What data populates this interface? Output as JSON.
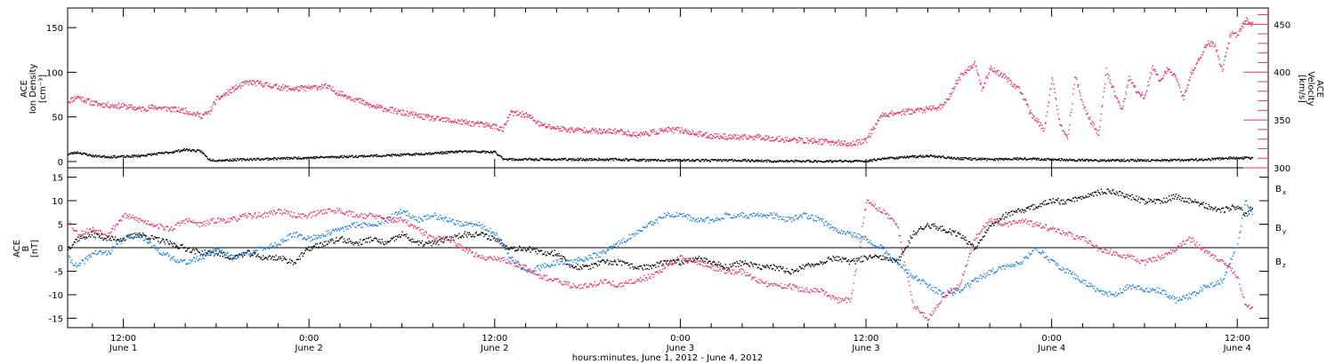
{
  "colors": {
    "black": "#000000",
    "pink": "#e8336a",
    "blue": "#1c7fd8"
  },
  "chart_data": [
    {
      "type": "scatter",
      "panel": "top",
      "ylabel_left": [
        "ACE",
        "Ion Density",
        "[cm⁻³]"
      ],
      "ylabel_right": [
        "ACE",
        "Velocity",
        "[km/s]"
      ],
      "ylim_left": [
        -7,
        172
      ],
      "ylim_right": [
        300,
        467
      ],
      "left_ticks": [
        0,
        50,
        100,
        150
      ],
      "left_tick_labels": [
        "0",
        "50",
        "100",
        "150"
      ],
      "right_ticks": [
        300,
        350,
        400,
        450
      ],
      "right_tick_labels": [
        "300",
        "350",
        "400",
        "450"
      ],
      "x_unit": "hours since 2012-06-01 00:00",
      "xlim": [
        8.4,
        86
      ],
      "series": [
        {
          "axis": "right",
          "color": "#e8336a",
          "x": [
            8.4,
            9,
            10,
            11,
            12,
            13,
            14,
            15,
            16,
            17,
            17.5,
            18,
            19,
            20,
            21,
            22,
            23,
            24,
            25,
            26,
            27,
            28,
            29,
            30,
            31,
            32,
            33,
            34,
            35,
            36,
            36.5,
            37,
            38,
            39,
            40,
            41,
            42,
            43,
            44,
            45,
            46,
            47,
            48,
            49,
            50,
            51,
            52,
            53,
            54,
            55,
            56,
            57,
            58,
            59,
            60,
            61,
            62,
            63,
            64,
            65,
            66,
            67,
            67.5,
            68,
            69,
            70,
            70.5,
            71,
            71.5,
            72,
            72.5,
            73,
            73.5,
            74,
            74.5,
            75,
            75.5,
            76,
            76.5,
            77,
            77.5,
            78,
            78.5,
            79,
            79.5,
            80,
            80.5,
            81,
            81.5,
            82,
            82.5,
            83,
            83.5,
            84,
            84.5,
            85
          ],
          "y": [
            370,
            375,
            368,
            366,
            365,
            362,
            364,
            362,
            360,
            355,
            358,
            372,
            382,
            390,
            388,
            385,
            383,
            384,
            386,
            378,
            372,
            365,
            362,
            358,
            355,
            352,
            350,
            348,
            346,
            344,
            340,
            358,
            356,
            345,
            342,
            340,
            340,
            338,
            339,
            335,
            337,
            340,
            340,
            336,
            334,
            333,
            332,
            333,
            331,
            330,
            329,
            328,
            327,
            325,
            330,
            356,
            358,
            360,
            362,
            365,
            395,
            410,
            382,
            405,
            395,
            380,
            360,
            350,
            340,
            395,
            345,
            330,
            398,
            365,
            350,
            335,
            402,
            380,
            360,
            395,
            380,
            375,
            405,
            390,
            405,
            395,
            372,
            400,
            415,
            430,
            430,
            402,
            440,
            440,
            455,
            450
          ]
        },
        {
          "axis": "left",
          "color": "#000000",
          "x": [
            8.4,
            9,
            10,
            11,
            12,
            13,
            14,
            15,
            16,
            17,
            17.5,
            18,
            20,
            22,
            24,
            26,
            28,
            30,
            32,
            34,
            36,
            36.5,
            37,
            38,
            40,
            42,
            44,
            46,
            48,
            50,
            52,
            54,
            56,
            58,
            60,
            61,
            62,
            64,
            66,
            68,
            70,
            72,
            74,
            76,
            78,
            80,
            82,
            84,
            85
          ],
          "y": [
            9,
            11,
            7,
            6,
            6,
            7,
            9,
            11,
            14,
            12,
            3,
            2,
            3,
            4,
            5,
            6,
            7,
            8,
            10,
            12,
            11,
            4,
            3,
            3,
            3,
            3,
            3,
            2,
            2,
            2,
            2,
            1,
            1,
            1,
            1,
            4,
            5,
            7,
            4,
            3,
            4,
            3,
            2,
            2,
            2,
            2,
            3,
            5,
            4
          ]
        }
      ]
    },
    {
      "type": "scatter",
      "panel": "bottom",
      "ylabel_left": [
        "ACE",
        "B",
        "[nT]"
      ],
      "ylim": [
        -17,
        17
      ],
      "ticks": [
        -15,
        -10,
        -5,
        0,
        5,
        10,
        15
      ],
      "tick_labels": [
        "-15",
        "-10",
        "-5",
        "0",
        "5",
        "10",
        "15"
      ],
      "zero_line": true,
      "x_unit": "hours since 2012-06-01 00:00",
      "xlim": [
        8.4,
        86
      ],
      "legend": [
        "Bₓ",
        "Bᵧ",
        "B_z"
      ],
      "legend_position": "right",
      "series": [
        {
          "name": "Bₓ",
          "legend_text": "B",
          "legend_sub": "x",
          "color": "#000000",
          "x": [
            8.4,
            9,
            10,
            11,
            12,
            13,
            14,
            15,
            16,
            17,
            18,
            19,
            20,
            21,
            22,
            23,
            24,
            25,
            26,
            27,
            28,
            29,
            30,
            31,
            32,
            33,
            34,
            35,
            36,
            37,
            38,
            39,
            40,
            41,
            42,
            43,
            44,
            45,
            46,
            47,
            48,
            49,
            50,
            51,
            52,
            53,
            54,
            55,
            56,
            57,
            58,
            59,
            60,
            61,
            62,
            63,
            64,
            65,
            66,
            67,
            68,
            69,
            70,
            71,
            72,
            73,
            74,
            75,
            76,
            77,
            78,
            79,
            80,
            81,
            82,
            83,
            84,
            84.5,
            85
          ],
          "y": [
            0,
            2,
            3,
            2,
            2,
            3,
            2,
            1,
            0,
            -1,
            -1,
            -2,
            -1,
            -2,
            -2,
            -3,
            0,
            1,
            2,
            1,
            2,
            1,
            3,
            1,
            1,
            2,
            3,
            3,
            2,
            0,
            0,
            -1,
            -1,
            -4,
            -4,
            -3,
            -3,
            -4,
            -4,
            -3,
            -3,
            -2,
            -3,
            -4,
            -3,
            -4,
            -4,
            -5,
            -4,
            -3,
            -2,
            -3,
            -2,
            -2,
            -3,
            3,
            5,
            4,
            3,
            0,
            5,
            7,
            8,
            9,
            10,
            10,
            11,
            12,
            12,
            11,
            10,
            10,
            11,
            10,
            9,
            8,
            9,
            7,
            9
          ]
        },
        {
          "name": "Bᵧ",
          "legend_text": "B",
          "legend_sub": "y",
          "color": "#1c7fd8",
          "x": [
            8.4,
            9,
            10,
            11,
            12,
            13,
            14,
            15,
            16,
            17,
            18,
            19,
            20,
            21,
            22,
            23,
            24,
            25,
            26,
            27,
            28,
            29,
            30,
            31,
            32,
            33,
            34,
            35,
            36,
            37,
            38,
            39,
            40,
            41,
            42,
            43,
            44,
            45,
            46,
            47,
            48,
            49,
            50,
            51,
            52,
            53,
            54,
            55,
            56,
            57,
            58,
            59,
            60,
            61,
            62,
            63,
            64,
            65,
            66,
            67,
            68,
            69,
            70,
            71,
            72,
            73,
            74,
            75,
            76,
            77,
            78,
            79,
            80,
            81,
            82,
            83,
            84,
            84.5,
            85
          ],
          "y": [
            -2,
            -4,
            -1,
            -1,
            2,
            3,
            0,
            -2,
            -3,
            -2,
            0,
            -2,
            -1,
            0,
            1,
            3,
            2,
            3,
            4,
            5,
            5,
            6,
            8,
            6,
            7,
            6,
            5,
            5,
            3,
            -2,
            -5,
            -4,
            -3,
            -3,
            -2,
            -1,
            1,
            3,
            5,
            7,
            7,
            6,
            6,
            7,
            7,
            7,
            7,
            6,
            7,
            6,
            4,
            3,
            2,
            0,
            -3,
            -6,
            -8,
            -10,
            -9,
            -7,
            -5,
            -4,
            -3,
            0,
            -3,
            -5,
            -7,
            -9,
            -10,
            -8,
            -9,
            -9,
            -11,
            -10,
            -8,
            -7,
            1,
            10,
            7
          ]
        },
        {
          "name": "B_z",
          "legend_text": "B",
          "legend_sub": "z",
          "color": "#e8336a",
          "x": [
            8.4,
            9,
            10,
            11,
            12,
            13,
            14,
            15,
            16,
            17,
            18,
            19,
            20,
            21,
            22,
            23,
            24,
            25,
            26,
            27,
            28,
            29,
            30,
            31,
            32,
            33,
            34,
            35,
            36,
            37,
            38,
            39,
            40,
            41,
            42,
            43,
            44,
            45,
            46,
            47,
            48,
            49,
            50,
            51,
            52,
            53,
            54,
            55,
            56,
            57,
            58,
            59,
            60,
            61,
            62,
            63,
            64,
            65,
            66,
            67,
            68,
            69,
            70,
            71,
            72,
            73,
            74,
            75,
            76,
            77,
            78,
            79,
            80,
            81,
            82,
            83,
            84,
            84.5,
            85
          ],
          "y": [
            6,
            3,
            4,
            3,
            7,
            6,
            5,
            4,
            6,
            5,
            6,
            6,
            7,
            7,
            8,
            7,
            7,
            8,
            8,
            7,
            7,
            6,
            6,
            4,
            2,
            2,
            0,
            -2,
            -2,
            -3,
            -4,
            -6,
            -7,
            -8,
            -8,
            -7,
            -8,
            -7,
            -6,
            -4,
            -2,
            -3,
            -4,
            -5,
            -5,
            -7,
            -8,
            -8,
            -9,
            -9,
            -11,
            -11,
            10,
            8,
            5,
            -12,
            -15,
            -10,
            -8,
            2,
            6,
            5,
            6,
            5,
            4,
            3,
            2,
            0,
            -1,
            -2,
            -3,
            -2,
            0,
            2,
            -1,
            -3,
            -6,
            -12,
            -13
          ]
        }
      ]
    }
  ],
  "x_axis": {
    "tick_hours": [
      12,
      24,
      36,
      48,
      60,
      72,
      84
    ],
    "tick_labels": [
      {
        "time": "12:00",
        "date": "June 1"
      },
      {
        "time": "0:00",
        "date": "June 2"
      },
      {
        "time": "12:00",
        "date": "June 2"
      },
      {
        "time": "0:00",
        "date": "June 3"
      },
      {
        "time": "12:00",
        "date": "June 3"
      },
      {
        "time": "0:00",
        "date": "June 4"
      },
      {
        "time": "12:00",
        "date": "June 4"
      }
    ],
    "label": "hours:minutes, June  1, 2012 - June  4, 2012"
  }
}
